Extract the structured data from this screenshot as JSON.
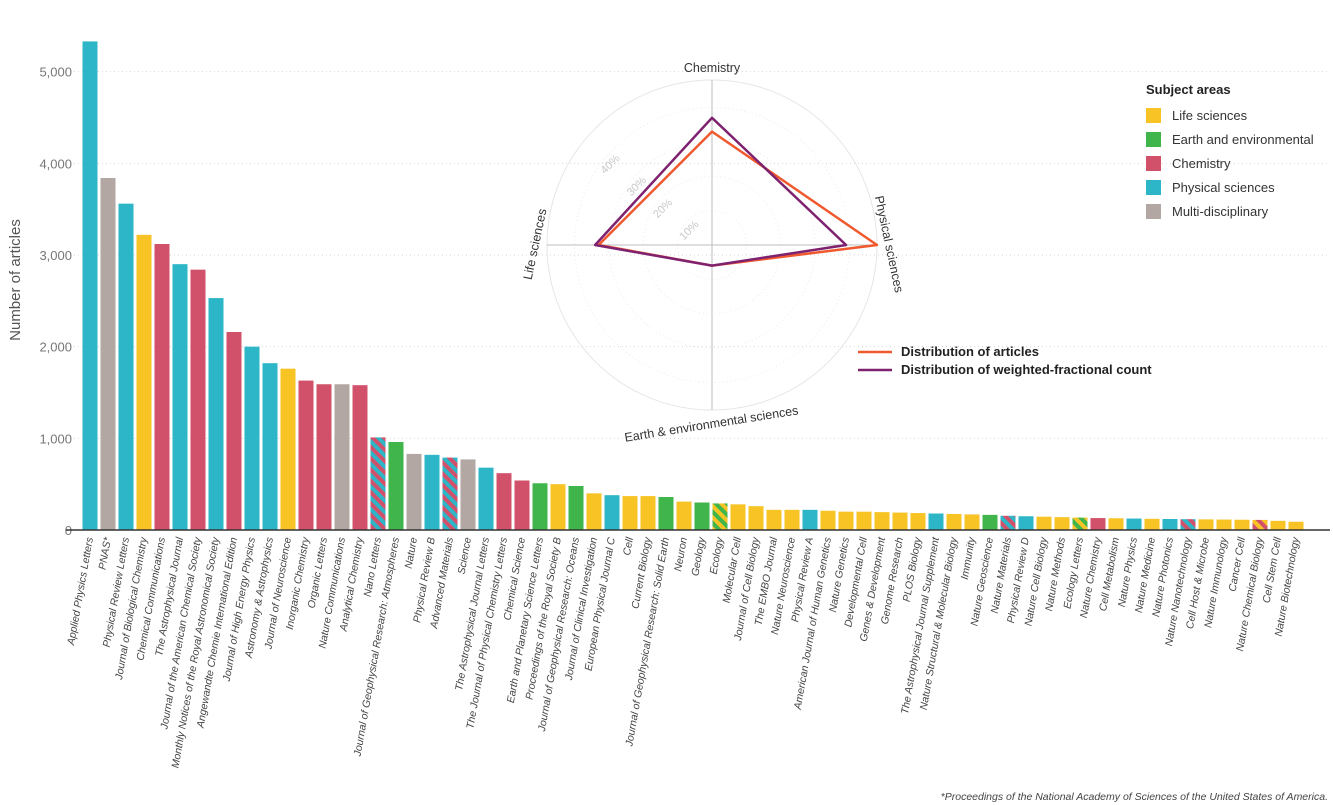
{
  "chart_data": [
    {
      "type": "bar",
      "ylabel": "Number of articles",
      "ylim": [
        0,
        5400
      ],
      "yticks": [
        0,
        1000,
        2000,
        3000,
        4000,
        5000
      ],
      "ytick_labels": [
        "0",
        "1,000",
        "2,000",
        "3,000",
        "4,000",
        "5,000"
      ],
      "grid": "horizontal dotted",
      "subject_colors": {
        "life": "#F7C325",
        "earth": "#3FB54B",
        "chem": "#D2516A",
        "phys": "#2DB6C7",
        "multi": "#B3A7A3"
      },
      "bars": [
        {
          "name": "Applied Physics Letters",
          "value": 5330,
          "areas": [
            "phys"
          ]
        },
        {
          "name": "PNAS*",
          "value": 3840,
          "areas": [
            "multi"
          ]
        },
        {
          "name": "Physical Review Letters",
          "value": 3560,
          "areas": [
            "phys"
          ]
        },
        {
          "name": "Journal of Biological Chemistry",
          "value": 3220,
          "areas": [
            "life"
          ]
        },
        {
          "name": "Chemical Communications",
          "value": 3120,
          "areas": [
            "chem"
          ]
        },
        {
          "name": "The Astrophysical Journal",
          "value": 2900,
          "areas": [
            "phys"
          ]
        },
        {
          "name": "Journal of the American Chemical Society",
          "value": 2840,
          "areas": [
            "chem"
          ]
        },
        {
          "name": "Monthly Notices of the Royal Astronomical Society",
          "value": 2530,
          "areas": [
            "phys"
          ]
        },
        {
          "name": "Angewandte Chemie International Edition",
          "value": 2160,
          "areas": [
            "chem"
          ]
        },
        {
          "name": "Journal of High Energy Physics",
          "value": 2000,
          "areas": [
            "phys"
          ]
        },
        {
          "name": "Astronomy & Astrophysics",
          "value": 1820,
          "areas": [
            "phys"
          ]
        },
        {
          "name": "Journal of Neuroscience",
          "value": 1760,
          "areas": [
            "life"
          ]
        },
        {
          "name": "Inorganic Chemistry",
          "value": 1630,
          "areas": [
            "chem"
          ]
        },
        {
          "name": "Organic Letters",
          "value": 1590,
          "areas": [
            "chem"
          ]
        },
        {
          "name": "Nature Communications",
          "value": 1590,
          "areas": [
            "multi"
          ]
        },
        {
          "name": "Analytical Chemistry",
          "value": 1580,
          "areas": [
            "chem"
          ]
        },
        {
          "name": "Nano Letters",
          "value": 1010,
          "areas": [
            "chem",
            "phys"
          ]
        },
        {
          "name": "Journal of Geophysical Research: Atmospheres",
          "value": 960,
          "areas": [
            "earth"
          ]
        },
        {
          "name": "Nature",
          "value": 830,
          "areas": [
            "multi"
          ]
        },
        {
          "name": "Physical Review B",
          "value": 820,
          "areas": [
            "phys"
          ]
        },
        {
          "name": "Advanced Materials",
          "value": 790,
          "areas": [
            "chem",
            "phys"
          ]
        },
        {
          "name": "Science",
          "value": 770,
          "areas": [
            "multi"
          ]
        },
        {
          "name": "The Astrophysical Journal Letters",
          "value": 680,
          "areas": [
            "phys"
          ]
        },
        {
          "name": "The Journal of Physical Chemistry Letters",
          "value": 620,
          "areas": [
            "chem"
          ]
        },
        {
          "name": "Chemical Science",
          "value": 540,
          "areas": [
            "chem"
          ]
        },
        {
          "name": "Earth and Planetary Science Letters",
          "value": 510,
          "areas": [
            "earth"
          ]
        },
        {
          "name": "Proceedings of the Royal Society B",
          "value": 500,
          "areas": [
            "life"
          ]
        },
        {
          "name": "Journal of Geophysical Research: Oceans",
          "value": 480,
          "areas": [
            "earth"
          ]
        },
        {
          "name": "Journal of Clinical Investigation",
          "value": 400,
          "areas": [
            "life"
          ]
        },
        {
          "name": "European Physical Journal C",
          "value": 380,
          "areas": [
            "phys"
          ]
        },
        {
          "name": "Cell",
          "value": 370,
          "areas": [
            "life"
          ]
        },
        {
          "name": "Current Biology",
          "value": 370,
          "areas": [
            "life"
          ]
        },
        {
          "name": "Journal of Geophysical Research: Solid Earth",
          "value": 360,
          "areas": [
            "earth"
          ]
        },
        {
          "name": "Neuron",
          "value": 310,
          "areas": [
            "life"
          ]
        },
        {
          "name": "Geology",
          "value": 300,
          "areas": [
            "earth"
          ]
        },
        {
          "name": "Ecology",
          "value": 290,
          "areas": [
            "life",
            "earth"
          ]
        },
        {
          "name": "Molecular Cell",
          "value": 280,
          "areas": [
            "life"
          ]
        },
        {
          "name": "Journal of Cell Biology",
          "value": 260,
          "areas": [
            "life"
          ]
        },
        {
          "name": "The EMBO Journal",
          "value": 220,
          "areas": [
            "life"
          ]
        },
        {
          "name": "Nature Neuroscience",
          "value": 220,
          "areas": [
            "life"
          ]
        },
        {
          "name": "Physical Review A",
          "value": 220,
          "areas": [
            "phys"
          ]
        },
        {
          "name": "American Journal of Human Genetics",
          "value": 210,
          "areas": [
            "life"
          ]
        },
        {
          "name": "Nature Genetics",
          "value": 200,
          "areas": [
            "life"
          ]
        },
        {
          "name": "Developmental Cell",
          "value": 200,
          "areas": [
            "life"
          ]
        },
        {
          "name": "Genes & Development",
          "value": 195,
          "areas": [
            "life"
          ]
        },
        {
          "name": "Genome Research",
          "value": 190,
          "areas": [
            "life"
          ]
        },
        {
          "name": "PLOS Biology",
          "value": 185,
          "areas": [
            "life"
          ]
        },
        {
          "name": "The Astrophysical Journal Supplement",
          "value": 180,
          "areas": [
            "phys"
          ]
        },
        {
          "name": "Nature Structural & Molecular Biology",
          "value": 175,
          "areas": [
            "life"
          ]
        },
        {
          "name": "Immunity",
          "value": 170,
          "areas": [
            "life"
          ]
        },
        {
          "name": "Nature Geoscience",
          "value": 165,
          "areas": [
            "earth"
          ]
        },
        {
          "name": "Nature Materials",
          "value": 155,
          "areas": [
            "chem",
            "phys"
          ]
        },
        {
          "name": "Physical Review D",
          "value": 150,
          "areas": [
            "phys"
          ]
        },
        {
          "name": "Nature Cell Biology",
          "value": 145,
          "areas": [
            "life"
          ]
        },
        {
          "name": "Nature Methods",
          "value": 140,
          "areas": [
            "life"
          ]
        },
        {
          "name": "Ecology Letters",
          "value": 135,
          "areas": [
            "life",
            "earth"
          ]
        },
        {
          "name": "Nature Chemistry",
          "value": 130,
          "areas": [
            "chem"
          ]
        },
        {
          "name": "Cell Metabolism",
          "value": 128,
          "areas": [
            "life"
          ]
        },
        {
          "name": "Nature Physics",
          "value": 125,
          "areas": [
            "phys"
          ]
        },
        {
          "name": "Nature Medicine",
          "value": 122,
          "areas": [
            "life"
          ]
        },
        {
          "name": "Nature Photonics",
          "value": 120,
          "areas": [
            "phys"
          ]
        },
        {
          "name": "Nature Nanotechnology",
          "value": 118,
          "areas": [
            "chem",
            "phys"
          ]
        },
        {
          "name": "Cell Host & Microbe",
          "value": 116,
          "areas": [
            "life"
          ]
        },
        {
          "name": "Nature Immunology",
          "value": 114,
          "areas": [
            "life"
          ]
        },
        {
          "name": "Cancer Cell",
          "value": 112,
          "areas": [
            "life"
          ]
        },
        {
          "name": "Nature Chemical Biology",
          "value": 110,
          "areas": [
            "chem",
            "life"
          ]
        },
        {
          "name": "Cell Stem Cell",
          "value": 100,
          "areas": [
            "life"
          ]
        },
        {
          "name": "Nature Biotechnology",
          "value": 90,
          "areas": [
            "life"
          ]
        }
      ],
      "legend": {
        "title": "Subject areas",
        "placement": "top-right",
        "items": [
          {
            "key": "life",
            "label": "Life sciences"
          },
          {
            "key": "earth",
            "label": "Earth and environmental"
          },
          {
            "key": "chem",
            "label": "Chemistry"
          },
          {
            "key": "phys",
            "label": "Physical sciences"
          },
          {
            "key": "multi",
            "label": "Multi-disciplinary"
          }
        ]
      },
      "footnote": "*Proceedings of the National Academy of Sciences of the United States of America."
    },
    {
      "type": "radar",
      "axes": [
        {
          "key": "chem",
          "label": "Chemistry"
        },
        {
          "key": "phys",
          "label": "Physical sciences"
        },
        {
          "key": "earth",
          "label": "Earth & environmental sciences"
        },
        {
          "key": "life",
          "label": "Life sciences"
        }
      ],
      "rings": [
        10,
        20,
        30,
        40
      ],
      "ring_labels": [
        "10%",
        "20%",
        "30%",
        "40%"
      ],
      "rmax": 48,
      "series": [
        {
          "name": "Distribution of articles",
          "color": "#F0582D",
          "values": {
            "chem": 33,
            "phys": 48,
            "earth": 6,
            "life": 33
          }
        },
        {
          "name": "Distribution of weighted-fractional count",
          "color": "#7E2270",
          "values": {
            "chem": 37,
            "phys": 39,
            "earth": 6,
            "life": 34
          }
        }
      ]
    }
  ]
}
